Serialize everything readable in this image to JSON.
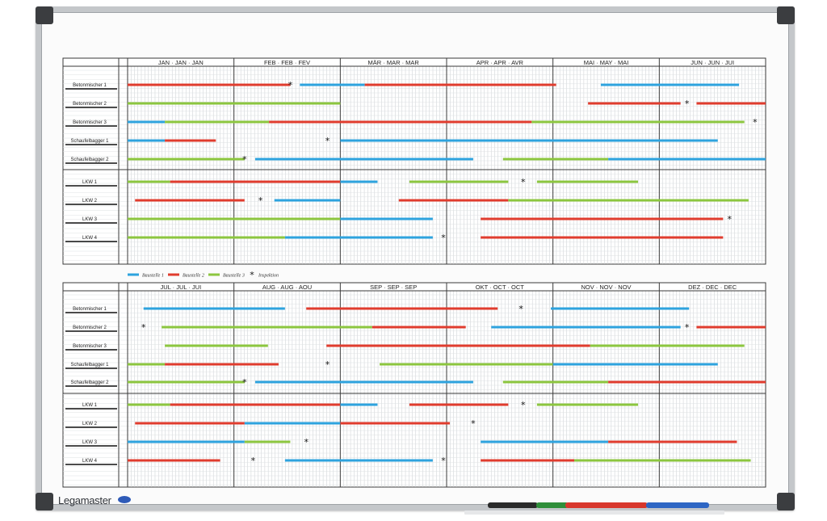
{
  "brand": {
    "name": "Legamaster"
  },
  "legend": [
    {
      "label": "Baustelle 1",
      "color": "#2ea3de"
    },
    {
      "label": "Baustelle 2",
      "color": "#e03c2e"
    },
    {
      "label": "Baustelle 3",
      "color": "#8cc63f"
    },
    {
      "label": "Inspektion",
      "symbol": "*"
    }
  ],
  "colors": {
    "b": "#2ea3de",
    "r": "#e03c2e",
    "g": "#8cc63f",
    "grid": "#c9cdd1",
    "line": "#3a3a3a"
  },
  "panels": [
    {
      "months": [
        "JAN · JAN · JAN",
        "FEB · FEB · FEV",
        "MÄR · MAR · MAR",
        "APR · APR · AVR",
        "MAI · MAY · MAI",
        "JUN · JUN · JUI"
      ],
      "resources": [
        "Betonmischer 1",
        "Betonmischer 2",
        "Betonmischer 3",
        "Schaufelbagger 1",
        "Schaufelbagger 2",
        "LKW 1",
        "LKW 2",
        "LKW 3",
        "LKW 4"
      ],
      "bars": [
        [
          [
            0.0,
            1.53,
            "r"
          ],
          [
            1.62,
            2.23,
            "b"
          ],
          [
            2.23,
            4.03,
            "r"
          ],
          [
            4.45,
            5.75,
            "b"
          ]
        ],
        [
          [
            0.0,
            2.0,
            "g"
          ],
          [
            4.33,
            5.2,
            "r"
          ],
          [
            5.35,
            6.0,
            "r"
          ]
        ],
        [
          [
            0.0,
            0.35,
            "b"
          ],
          [
            0.35,
            1.33,
            "g"
          ],
          [
            1.33,
            3.8,
            "r"
          ],
          [
            3.8,
            5.8,
            "g"
          ]
        ],
        [
          [
            0.0,
            0.35,
            "b"
          ],
          [
            0.35,
            0.83,
            "r"
          ],
          [
            2.0,
            5.55,
            "b"
          ]
        ],
        [
          [
            0.0,
            1.1,
            "g"
          ],
          [
            1.2,
            3.25,
            "b"
          ],
          [
            3.53,
            4.52,
            "g"
          ],
          [
            4.52,
            6.0,
            "b"
          ]
        ],
        [
          [
            0.0,
            0.4,
            "g"
          ],
          [
            0.4,
            2.0,
            "r"
          ],
          [
            2.0,
            2.35,
            "b"
          ],
          [
            2.65,
            3.58,
            "g"
          ],
          [
            3.85,
            4.8,
            "g"
          ]
        ],
        [
          [
            0.07,
            1.1,
            "r"
          ],
          [
            1.38,
            2.0,
            "b"
          ],
          [
            2.55,
            3.58,
            "r"
          ],
          [
            3.58,
            5.84,
            "g"
          ]
        ],
        [
          [
            0.0,
            2.0,
            "g"
          ],
          [
            2.0,
            2.87,
            "b"
          ],
          [
            3.32,
            5.6,
            "r"
          ]
        ],
        [
          [
            0.0,
            1.48,
            "g"
          ],
          [
            1.48,
            2.87,
            "b"
          ],
          [
            3.32,
            5.6,
            "r"
          ]
        ]
      ],
      "stars": [
        [
          0,
          1.53
        ],
        [
          1,
          5.26
        ],
        [
          2,
          5.9
        ],
        [
          3,
          1.88
        ],
        [
          4,
          1.1
        ],
        [
          5,
          3.72
        ],
        [
          6,
          1.25
        ],
        [
          7,
          5.66
        ],
        [
          8,
          2.97
        ]
      ]
    },
    {
      "months": [
        "JUL · JUL · JUI",
        "AUG · AUG · AOU",
        "SEP · SEP · SEP",
        "OKT · OCT · OCT",
        "NOV · NOV · NOV",
        "DEZ · DEC · DEC"
      ],
      "resources": [
        "Betonmischer 1",
        "Betonmischer 2",
        "Betonmischer 3",
        "Schaufelbagger 1",
        "Schaufelbagger 2",
        "LKW 1",
        "LKW 2",
        "LKW 3",
        "LKW 4"
      ],
      "bars": [
        [
          [
            0.15,
            1.48,
            "b"
          ],
          [
            1.68,
            3.48,
            "r"
          ],
          [
            3.98,
            5.28,
            "b"
          ]
        ],
        [
          [
            0.32,
            2.3,
            "g"
          ],
          [
            2.3,
            3.18,
            "r"
          ],
          [
            3.42,
            5.2,
            "b"
          ],
          [
            5.35,
            6.0,
            "r"
          ]
        ],
        [
          [
            0.35,
            1.32,
            "g"
          ],
          [
            1.87,
            4.35,
            "r"
          ],
          [
            4.35,
            5.8,
            "g"
          ]
        ],
        [
          [
            0.0,
            0.35,
            "g"
          ],
          [
            0.35,
            1.42,
            "r"
          ],
          [
            2.37,
            4.0,
            "g"
          ],
          [
            4.0,
            5.55,
            "b"
          ]
        ],
        [
          [
            0.0,
            1.1,
            "g"
          ],
          [
            1.2,
            3.25,
            "b"
          ],
          [
            3.53,
            4.52,
            "g"
          ],
          [
            4.52,
            6.0,
            "r"
          ]
        ],
        [
          [
            0.0,
            0.4,
            "g"
          ],
          [
            0.4,
            2.0,
            "r"
          ],
          [
            2.0,
            2.35,
            "b"
          ],
          [
            2.65,
            3.58,
            "r"
          ],
          [
            3.85,
            4.8,
            "g"
          ]
        ],
        [
          [
            0.07,
            1.1,
            "r"
          ],
          [
            1.1,
            2.0,
            "b"
          ],
          [
            2.0,
            3.03,
            "r"
          ]
        ],
        [
          [
            0.0,
            1.1,
            "b"
          ],
          [
            1.1,
            1.53,
            "g"
          ],
          [
            3.32,
            4.52,
            "b"
          ],
          [
            4.52,
            5.73,
            "r"
          ]
        ],
        [
          [
            0.0,
            0.87,
            "r"
          ],
          [
            1.48,
            2.87,
            "b"
          ],
          [
            3.32,
            4.2,
            "r"
          ],
          [
            4.2,
            5.86,
            "g"
          ]
        ]
      ],
      "stars": [
        [
          0,
          3.7
        ],
        [
          1,
          0.15
        ],
        [
          1,
          5.26
        ],
        [
          3,
          1.88
        ],
        [
          4,
          1.1
        ],
        [
          5,
          3.72
        ],
        [
          6,
          3.25
        ],
        [
          7,
          1.68
        ],
        [
          8,
          1.18
        ],
        [
          8,
          2.97
        ]
      ]
    }
  ]
}
